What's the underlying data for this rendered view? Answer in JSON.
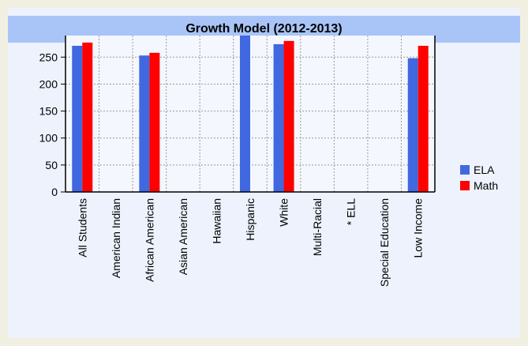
{
  "chart_data": {
    "type": "bar",
    "title": "Growth Model (2012-2013)",
    "categories": [
      "All Students",
      "American Indian",
      "African American",
      "Asian American",
      "Hawaiian",
      "Hispanic",
      "White",
      "Multi-Racial",
      "* ELL",
      "Special Education",
      "Low Income"
    ],
    "series": [
      {
        "name": "ELA",
        "color": "#4068e0",
        "values": [
          271,
          null,
          253,
          null,
          null,
          300,
          274,
          null,
          null,
          null,
          248
        ]
      },
      {
        "name": "Math",
        "color": "#fe0000",
        "values": [
          277,
          null,
          258,
          null,
          null,
          null,
          280,
          null,
          null,
          null,
          271
        ]
      }
    ],
    "ylim": [
      0,
      290
    ],
    "yticks": [
      0,
      50,
      100,
      150,
      200,
      250
    ],
    "grid": true,
    "legend": "right"
  }
}
